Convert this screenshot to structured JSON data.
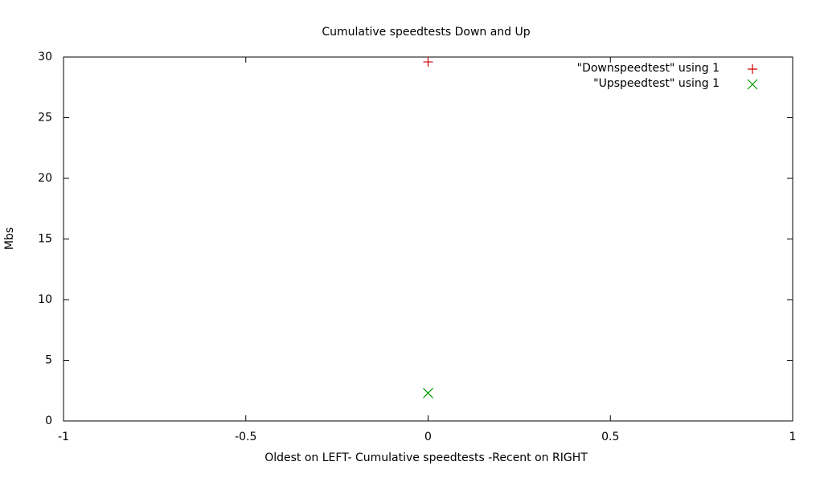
{
  "chart_data": {
    "type": "scatter",
    "title": "Cumulative speedtests Down and Up",
    "x_label": "Oldest on LEFT- Cumulative speedtests -Recent on RIGHT",
    "y_label": "Mbs",
    "series": [
      {
        "name": "\"Downspeedtest\" using 1",
        "color": "#cc0000",
        "marker": "plus",
        "x": [
          0
        ],
        "values": [
          29.6
        ]
      },
      {
        "name": "\"Upspeedtest\" using 1",
        "color": "#009900",
        "marker": "cross",
        "x": [
          0
        ],
        "values": [
          2.3
        ]
      }
    ],
    "xlim": [
      -1,
      1
    ],
    "xticks": [
      -1,
      -0.5,
      0,
      0.5,
      1
    ],
    "ylim": [
      0,
      30
    ],
    "yticks": [
      0,
      5,
      10,
      15,
      20,
      25,
      30
    ],
    "grid": false,
    "legend": "top-right"
  }
}
